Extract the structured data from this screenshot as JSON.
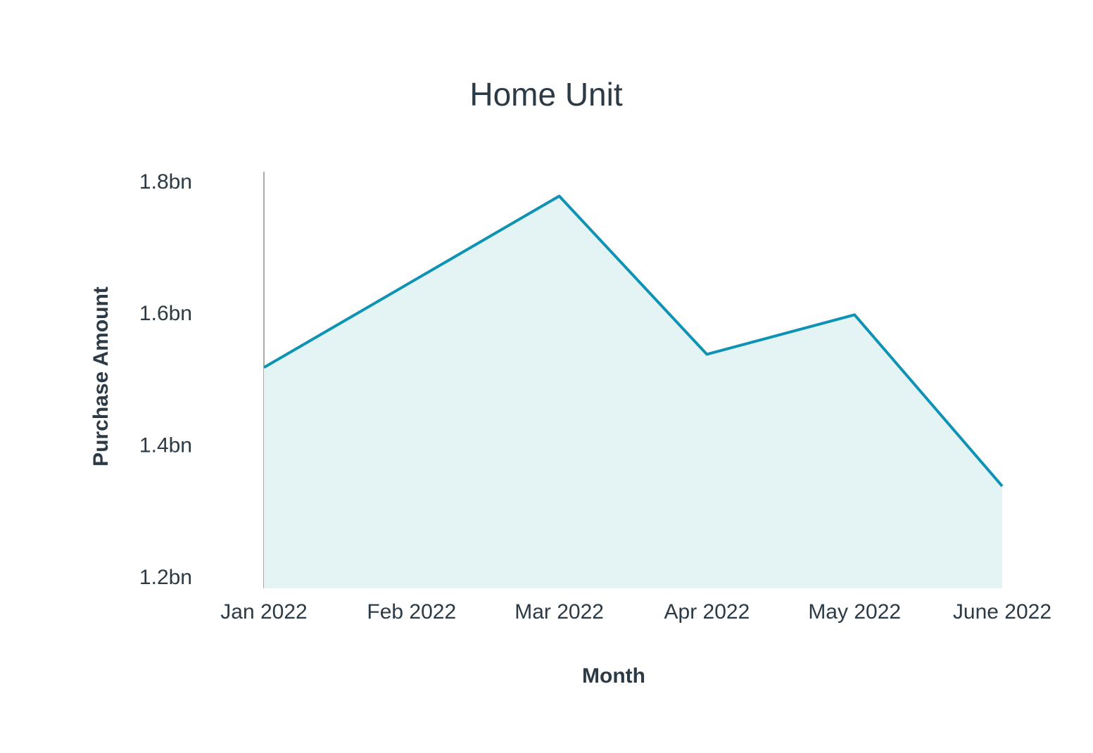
{
  "chart_data": {
    "type": "area",
    "title": "Home Unit",
    "x_label": "Month",
    "y_label": "Purchase Amount",
    "categories": [
      "Jan 2022",
      "Feb 2022",
      "Mar 2022",
      "Apr 2022",
      "May 2022",
      "June 2022"
    ],
    "series": [
      {
        "name": "Purchase Amount",
        "color": "#0e93b5",
        "fill": "#e4f4f5",
        "values": [
          1.52,
          1.65,
          1.78,
          1.54,
          1.6,
          1.34
        ]
      }
    ],
    "ylim": [
      1.185,
      1.817
    ],
    "yticks": [
      {
        "value": 1.2,
        "label": "1.2bn"
      },
      {
        "value": 1.4,
        "label": "1.4bn"
      },
      {
        "value": 1.6,
        "label": "1.6bn"
      },
      {
        "value": 1.8,
        "label": "1.8bn"
      }
    ],
    "grid": false
  }
}
